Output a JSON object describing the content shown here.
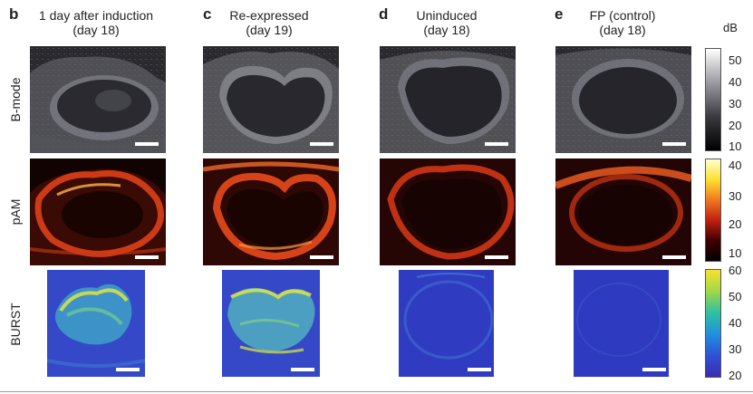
{
  "panels": [
    {
      "letter": "b",
      "title_line1": "1 day after induction",
      "title_line2": "(day 18)"
    },
    {
      "letter": "c",
      "title_line1": "Re-expressed",
      "title_line2": "(day 19)"
    },
    {
      "letter": "d",
      "title_line1": "Uninduced",
      "title_line2": "(day 18)"
    },
    {
      "letter": "e",
      "title_line1": "FP (control)",
      "title_line2": "(day 18)"
    }
  ],
  "rows": [
    "B-mode",
    "pAM",
    "BURST"
  ],
  "colorbars": {
    "unit": "dB",
    "bmode_ticks": [
      "50",
      "40",
      "30",
      "20",
      "10"
    ],
    "pam_ticks": [
      "40",
      "30",
      "20",
      "10"
    ],
    "burst_ticks": [
      "60",
      "50",
      "40",
      "30",
      "20"
    ]
  },
  "colors": {
    "bmode_bg": "#1b1b1d",
    "pam_bg": "#120303",
    "pam_hot": "#e8431a",
    "burst_bg": "#2f3cc2",
    "burst_hot": "#d6e04a"
  }
}
